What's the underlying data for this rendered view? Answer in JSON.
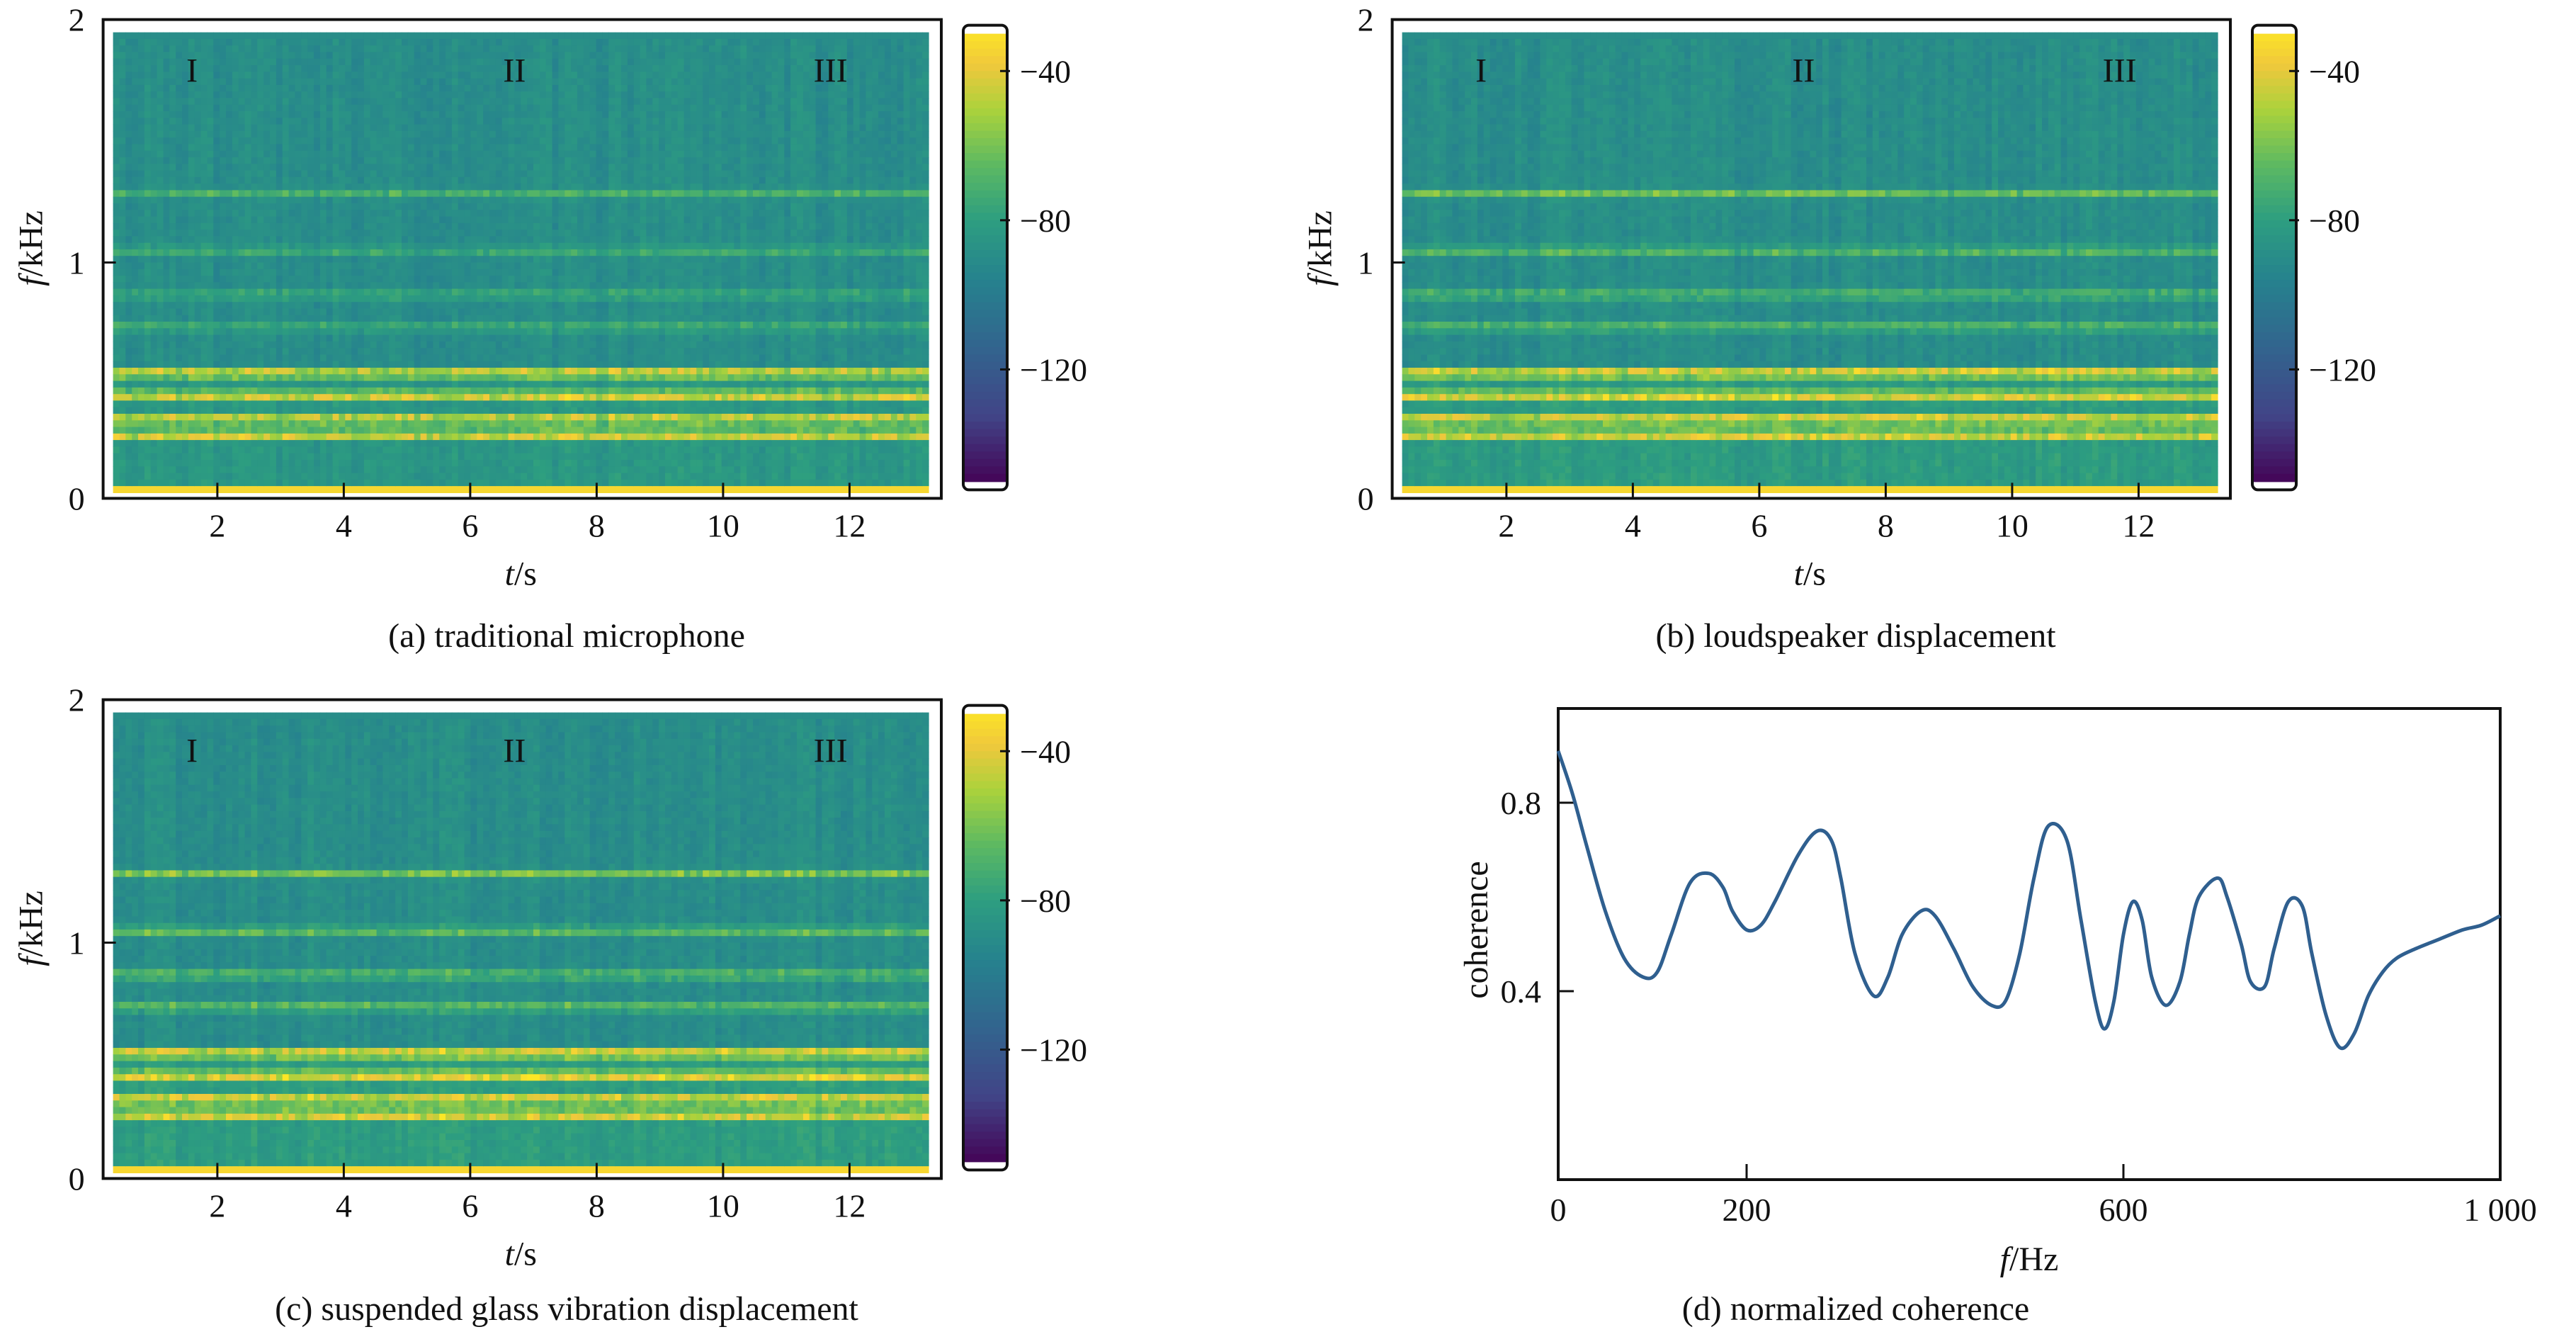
{
  "panels": [
    {
      "id": "a",
      "caption": "(a) traditional microphone",
      "chart_data": {
        "type": "heatmap",
        "xlabel_italic": "t",
        "xlabel_unit": "/s",
        "ylabel_italic": "f",
        "ylabel_unit": "/kHz",
        "xlim": [
          0.35,
          13.25
        ],
        "ylim": [
          0,
          2
        ],
        "xticks": [
          2,
          4,
          6,
          8,
          10,
          12
        ],
        "yticks": [
          0,
          1,
          2
        ],
        "segment_labels": [
          {
            "text": "I",
            "t": 1.6
          },
          {
            "text": "II",
            "t": 6.7
          },
          {
            "text": "III",
            "t": 11.7
          }
        ],
        "colorbar": {
          "ticks": [
            -40,
            -80,
            -120
          ],
          "range": [
            -150,
            -30
          ]
        },
        "energy_level": 0.55
      }
    },
    {
      "id": "b",
      "caption": "(b) loudspeaker displacement",
      "chart_data": {
        "type": "heatmap",
        "xlabel_italic": "t",
        "xlabel_unit": "/s",
        "ylabel_italic": "f",
        "ylabel_unit": "/kHz",
        "xlim": [
          0.35,
          13.25
        ],
        "ylim": [
          0,
          2
        ],
        "xticks": [
          2,
          4,
          6,
          8,
          10,
          12
        ],
        "yticks": [
          0,
          1,
          2
        ],
        "segment_labels": [
          {
            "text": "I",
            "t": 1.6
          },
          {
            "text": "II",
            "t": 6.7
          },
          {
            "text": "III",
            "t": 11.7
          }
        ],
        "colorbar": {
          "ticks": [
            -40,
            -80,
            -120
          ],
          "range": [
            -150,
            -30
          ]
        },
        "energy_level": 0.8
      }
    },
    {
      "id": "c",
      "caption": "(c) suspended glass vibration displacement",
      "chart_data": {
        "type": "heatmap",
        "xlabel_italic": "t",
        "xlabel_unit": "/s",
        "ylabel_italic": "f",
        "ylabel_unit": "/kHz",
        "xlim": [
          0.35,
          13.25
        ],
        "ylim": [
          0,
          2
        ],
        "xticks": [
          2,
          4,
          6,
          8,
          10,
          12
        ],
        "yticks": [
          0,
          1,
          2
        ],
        "segment_labels": [
          {
            "text": "I",
            "t": 1.6
          },
          {
            "text": "II",
            "t": 6.7
          },
          {
            "text": "III",
            "t": 11.7
          }
        ],
        "colorbar": {
          "ticks": [
            -40,
            -80,
            -120
          ],
          "range": [
            -150,
            -30
          ]
        },
        "energy_level": 0.9
      }
    },
    {
      "id": "d",
      "caption": "(d) normalized coherence",
      "chart_data": {
        "type": "line",
        "xlabel_italic": "f",
        "xlabel_unit": "/Hz",
        "ylabel": "coherence",
        "xlim": [
          0,
          1000
        ],
        "ylim": [
          0,
          1.0
        ],
        "xticks": [
          0,
          200,
          600,
          1000
        ],
        "xtick_labels": [
          "0",
          "200",
          "600",
          "1 000"
        ],
        "yticks": [
          0.4,
          0.8
        ],
        "ytick_labels": [
          "0.4",
          "0.8"
        ],
        "color": "#2f5f8f",
        "x": [
          0,
          15,
          30,
          50,
          70,
          90,
          105,
          120,
          140,
          160,
          175,
          185,
          200,
          215,
          230,
          255,
          275,
          290,
          300,
          315,
          335,
          350,
          365,
          385,
          400,
          420,
          440,
          460,
          475,
          490,
          505,
          520,
          540,
          555,
          570,
          580,
          590,
          600,
          610,
          620,
          630,
          645,
          660,
          670,
          680,
          700,
          710,
          725,
          735,
          750,
          760,
          775,
          790,
          800,
          815,
          830,
          845,
          860,
          875,
          890,
          910,
          935,
          960,
          980,
          1000
        ],
        "y": [
          0.91,
          0.82,
          0.71,
          0.57,
          0.47,
          0.43,
          0.44,
          0.52,
          0.63,
          0.65,
          0.62,
          0.57,
          0.53,
          0.54,
          0.59,
          0.69,
          0.74,
          0.72,
          0.64,
          0.48,
          0.39,
          0.43,
          0.52,
          0.57,
          0.56,
          0.49,
          0.41,
          0.37,
          0.38,
          0.48,
          0.64,
          0.75,
          0.72,
          0.55,
          0.38,
          0.32,
          0.38,
          0.52,
          0.59,
          0.55,
          0.43,
          0.37,
          0.42,
          0.52,
          0.6,
          0.64,
          0.6,
          0.5,
          0.42,
          0.41,
          0.49,
          0.59,
          0.58,
          0.48,
          0.35,
          0.28,
          0.31,
          0.39,
          0.44,
          0.47,
          0.49,
          0.51,
          0.53,
          0.54,
          0.56
        ]
      }
    }
  ]
}
